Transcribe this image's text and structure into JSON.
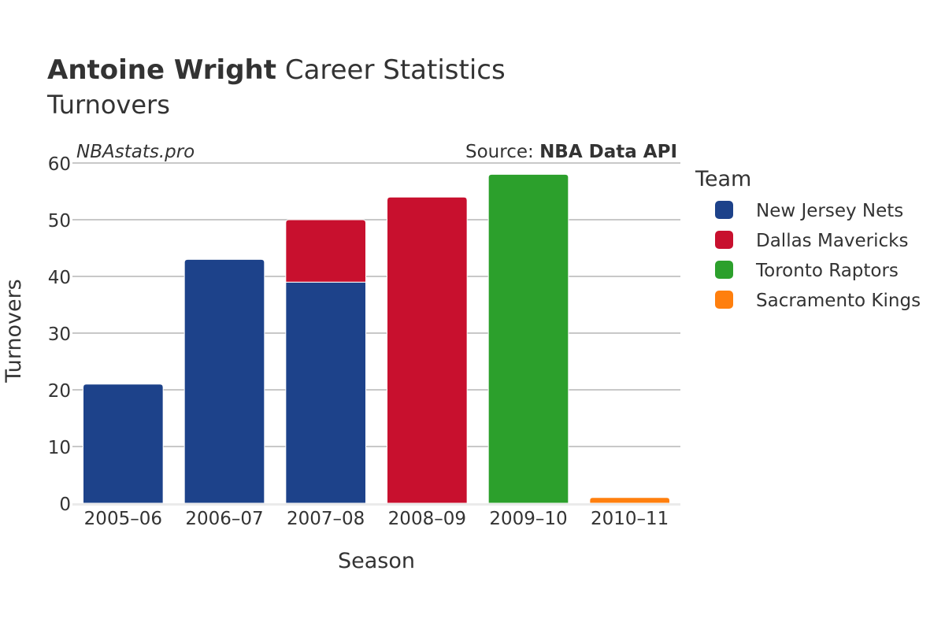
{
  "header": {
    "player_name": "Antoine Wright",
    "title_rest": " Career Statistics",
    "subtitle": "Turnovers"
  },
  "watermark": "NBAstats.pro",
  "source": {
    "prefix": "Source: ",
    "name": "NBA Data API"
  },
  "legend": {
    "title": "Team",
    "items": [
      {
        "label": "New Jersey Nets",
        "color": "#1d428a"
      },
      {
        "label": "Dallas Mavericks",
        "color": "#c8102e"
      },
      {
        "label": "Toronto Raptors",
        "color": "#2ca02c"
      },
      {
        "label": "Sacramento Kings",
        "color": "#ff7f0e"
      }
    ]
  },
  "chart_data": {
    "type": "bar",
    "stacked": true,
    "title": "Antoine Wright Career Statistics",
    "subtitle": "Turnovers",
    "xlabel": "Season",
    "ylabel": "Turnovers",
    "ylim": [
      0,
      60
    ],
    "yticks": [
      0,
      10,
      20,
      30,
      40,
      50,
      60
    ],
    "grid": true,
    "legend_position": "right",
    "categories": [
      "2005–06",
      "2006–07",
      "2007–08",
      "2008–09",
      "2009–10",
      "2010–11"
    ],
    "series": [
      {
        "name": "New Jersey Nets",
        "color": "#1d428a",
        "values": [
          21,
          43,
          39,
          0,
          0,
          0
        ]
      },
      {
        "name": "Dallas Mavericks",
        "color": "#c8102e",
        "values": [
          0,
          0,
          11,
          54,
          0,
          0
        ]
      },
      {
        "name": "Toronto Raptors",
        "color": "#2ca02c",
        "values": [
          0,
          0,
          0,
          0,
          58,
          0
        ]
      },
      {
        "name": "Sacramento Kings",
        "color": "#ff7f0e",
        "values": [
          0,
          0,
          0,
          0,
          0,
          1
        ]
      }
    ]
  }
}
